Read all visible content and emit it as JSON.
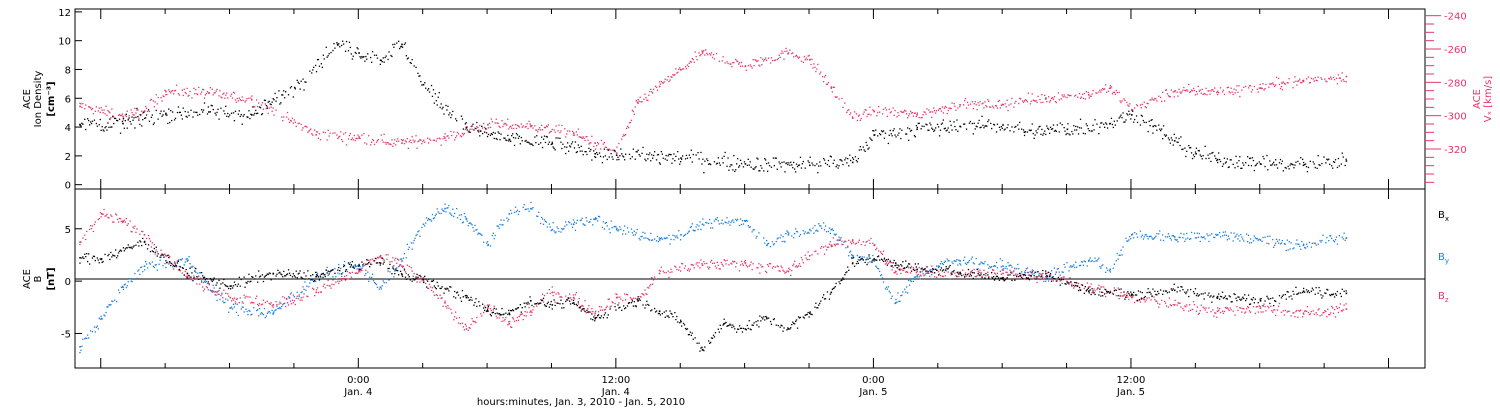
{
  "chart_data": [
    {
      "type": "scatter",
      "panel": "top",
      "title": "",
      "xlabel": "hours:minutes, Jan. 3, 2010 - Jan. 5, 2010",
      "x_range_hours": [
        -13.2,
        49.7
      ],
      "x_ticks": [
        {
          "line1": "0:00",
          "line2": "Jan. 4"
        },
        {
          "line1": "12:00",
          "line2": "Jan. 4"
        },
        {
          "line1": "0:00",
          "line2": "Jan. 5"
        },
        {
          "line1": "12:00",
          "line2": "Jan. 5"
        }
      ],
      "left_axis": {
        "label_lines": [
          "ACE",
          "Ion Density",
          "[cm⁻³]"
        ],
        "ylim": [
          -0.3,
          12.2
        ],
        "ticks": [
          "0",
          "2",
          "4",
          "6",
          "8",
          "10",
          "12"
        ]
      },
      "right_axis": {
        "label_lines": [
          "ACE",
          "Vₓ [km/s]"
        ],
        "ylim": [
          -344,
          -236
        ],
        "ticks": [
          "-240",
          "-260",
          "-280",
          "-300",
          "-320"
        ],
        "color": "#e8356a"
      },
      "grid": false,
      "series": [
        {
          "name": "",
          "axis": "left",
          "color": "#000000",
          "x": [
            -13,
            -11,
            -9,
            -7,
            -5,
            -3,
            -1,
            0,
            1,
            2,
            3,
            5,
            7,
            9,
            11,
            12,
            15,
            18,
            21,
            23,
            24,
            26,
            28,
            30,
            31,
            33,
            35,
            36,
            37,
            38,
            39,
            40,
            42,
            44,
            46
          ],
          "y": [
            4.2,
            4.3,
            5.0,
            5.1,
            4.9,
            6.8,
            9.8,
            9.2,
            8.7,
            9.8,
            7.0,
            4.0,
            3.2,
            2.9,
            2.2,
            2.1,
            1.9,
            1.5,
            1.4,
            1.6,
            3.5,
            3.9,
            4.1,
            4.2,
            3.7,
            3.9,
            4.3,
            4.9,
            4.1,
            3.1,
            2.2,
            1.8,
            1.5,
            1.4,
            1.7
          ]
        },
        {
          "name": "",
          "axis": "right",
          "color": "#e8356a",
          "x": [
            -13,
            -11,
            -10,
            -9,
            -7,
            -5,
            -2,
            0,
            2,
            4,
            6,
            8,
            10,
            11,
            12,
            13,
            14,
            15,
            16,
            18,
            20,
            21,
            22,
            23,
            24,
            26,
            28,
            30,
            32,
            34,
            35,
            36,
            38,
            40,
            42,
            43,
            44,
            46
          ],
          "y": [
            -294,
            -300,
            -297,
            -285,
            -286,
            -290,
            -311,
            -313,
            -316,
            -313,
            -305,
            -306,
            -310,
            -316,
            -322,
            -292,
            -282,
            -272,
            -262,
            -270,
            -262,
            -266,
            -283,
            -301,
            -297,
            -299,
            -293,
            -293,
            -289,
            -287,
            -283,
            -296,
            -285,
            -285,
            -283,
            -280,
            -279,
            -276
          ]
        }
      ]
    },
    {
      "type": "scatter",
      "panel": "bottom",
      "title": "",
      "xlabel": "hours:minutes, Jan. 3, 2010 - Jan. 5, 2010",
      "x_range_hours": [
        -13.2,
        49.7
      ],
      "left_axis": {
        "label_lines": [
          "ACE",
          "B",
          "[nT]"
        ],
        "ylim": [
          -8.3,
          8.8
        ],
        "ticks": [
          "5",
          "0",
          "-5"
        ]
      },
      "grid": false,
      "zero_line": true,
      "legend": "right",
      "series": [
        {
          "name": "Bx",
          "label_parts": [
            "B",
            "x"
          ],
          "color": "#000000",
          "x": [
            -13,
            -12,
            -10,
            -8,
            -6,
            -4,
            -2,
            0,
            1,
            2,
            3,
            5,
            6,
            7,
            8,
            9,
            10,
            11,
            13,
            14,
            15,
            16,
            17,
            18,
            19,
            20,
            21,
            22,
            23,
            24,
            25,
            26,
            28,
            30,
            32,
            34,
            36,
            38,
            40,
            42,
            44,
            46
          ],
          "y": [
            2.3,
            2.2,
            3.8,
            0.8,
            -0.4,
            0.8,
            0.5,
            1.6,
            1.8,
            0.7,
            0.2,
            -1.5,
            -2.8,
            -3.0,
            -1.8,
            -2.2,
            -2.0,
            -3.5,
            -1.8,
            -2.8,
            -3.8,
            -6.5,
            -4.0,
            -4.5,
            -3.5,
            -4.5,
            -3.0,
            -1.0,
            1.8,
            2.2,
            1.8,
            1.2,
            0.9,
            0.4,
            0.8,
            -0.9,
            -1.2,
            -0.8,
            -1.4,
            -1.8,
            -0.9,
            -1.1
          ]
        },
        {
          "name": "By",
          "label_parts": [
            "B",
            "y"
          ],
          "color": "#1c7fdc",
          "x": [
            -13,
            -12,
            -11,
            -10,
            -8,
            -6,
            -4,
            -2,
            0,
            1,
            2,
            3,
            4,
            5,
            6,
            7,
            8,
            9,
            10,
            11,
            12,
            14,
            15,
            16,
            18,
            19,
            20,
            21,
            22,
            23,
            24,
            25,
            26,
            27,
            28,
            30,
            32,
            34,
            35,
            36,
            38,
            40,
            42,
            44,
            46
          ],
          "y": [
            -6.2,
            -3.5,
            -0.5,
            1.5,
            2.0,
            -2.5,
            -3.0,
            0.5,
            1.5,
            -0.5,
            2.0,
            5.5,
            7.0,
            6.0,
            3.5,
            6.5,
            7.0,
            5.0,
            5.5,
            6.0,
            5.0,
            4.0,
            4.5,
            5.5,
            5.8,
            3.5,
            4.5,
            5.0,
            5.0,
            2.5,
            2.0,
            -2.0,
            0.5,
            1.5,
            2.0,
            1.5,
            0.5,
            2.0,
            1.2,
            4.5,
            4.3,
            4.5,
            4.0,
            3.5,
            4.2
          ]
        },
        {
          "name": "Bz",
          "label_parts": [
            "B",
            "z"
          ],
          "color": "#e8356a",
          "x": [
            -13,
            -12,
            -11,
            -10,
            -9,
            -8,
            -6,
            -4,
            -2,
            0,
            1,
            2,
            3,
            4,
            5,
            6,
            7,
            8,
            9,
            10,
            11,
            12,
            13,
            14,
            16,
            18,
            20,
            21,
            22,
            23,
            24,
            25,
            26,
            28,
            30,
            32,
            34,
            36,
            38,
            40,
            42,
            44,
            46
          ],
          "y": [
            3.8,
            6.5,
            5.8,
            4.5,
            2.5,
            0.5,
            -1.5,
            -2.2,
            -1.0,
            1.0,
            2.5,
            1.5,
            0.0,
            -2.0,
            -4.5,
            -2.5,
            -4.0,
            -2.8,
            -1.0,
            -1.5,
            -3.0,
            -1.5,
            -1.8,
            0.8,
            1.6,
            1.8,
            1.0,
            2.5,
            3.5,
            4.0,
            3.5,
            1.0,
            1.0,
            0.8,
            0.8,
            0.5,
            -0.5,
            -1.5,
            -2.2,
            -2.8,
            -2.5,
            -3.0,
            -2.6
          ]
        }
      ]
    }
  ]
}
